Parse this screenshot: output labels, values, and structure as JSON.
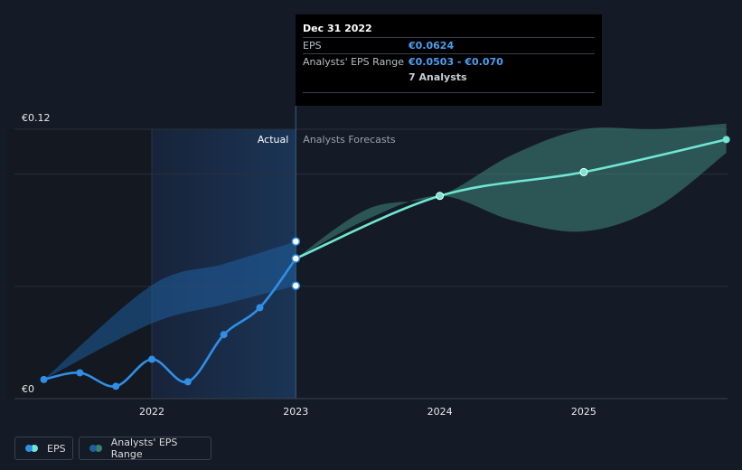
{
  "chart_data": {
    "type": "line",
    "currency_symbol": "€",
    "y_ticks": [
      {
        "value": 0.12,
        "label": "€0.12"
      },
      {
        "value": 0,
        "label": "€0"
      }
    ],
    "ylim": [
      0,
      0.12
    ],
    "x_ticks": [
      {
        "value": 2022,
        "label": "2022"
      },
      {
        "value": 2023,
        "label": "2023"
      },
      {
        "value": 2024,
        "label": "2024"
      },
      {
        "value": 2025,
        "label": "2025"
      }
    ],
    "xlim": [
      2021.0,
      2025.99
    ],
    "divider_x": 2023,
    "region_labels": {
      "actual": "Actual",
      "forecast": "Analysts Forecasts"
    },
    "series": [
      {
        "name": "EPS",
        "kind": "actual",
        "color": "#2f8fe6",
        "points": [
          {
            "x": 2021.25,
            "y": 0.0085
          },
          {
            "x": 2021.5,
            "y": 0.0115
          },
          {
            "x": 2021.75,
            "y": 0.0055
          },
          {
            "x": 2022.0,
            "y": 0.0175
          },
          {
            "x": 2022.25,
            "y": 0.0075
          },
          {
            "x": 2022.5,
            "y": 0.0285
          },
          {
            "x": 2022.75,
            "y": 0.0405
          },
          {
            "x": 2023.0,
            "y": 0.0624
          }
        ]
      },
      {
        "name": "EPS",
        "kind": "forecast",
        "color": "#6ee8d2",
        "points": [
          {
            "x": 2023.0,
            "y": 0.0624
          },
          {
            "x": 2024.0,
            "y": 0.0903
          },
          {
            "x": 2025.0,
            "y": 0.1009
          },
          {
            "x": 2025.99,
            "y": 0.1154
          }
        ]
      }
    ],
    "range_actual": {
      "color": "#1f5f9e",
      "points": [
        {
          "x": 2021.25,
          "lo": 0.0085,
          "hi": 0.0085
        },
        {
          "x": 2022.0,
          "lo": 0.0335,
          "hi": 0.0505
        },
        {
          "x": 2022.5,
          "lo": 0.042,
          "hi": 0.06
        },
        {
          "x": 2023.0,
          "lo": 0.0503,
          "hi": 0.07
        }
      ]
    },
    "range_forecast": {
      "color": "#3c7f75",
      "points": [
        {
          "x": 2023.0,
          "lo": 0.0624,
          "hi": 0.0624
        },
        {
          "x": 2023.5,
          "lo": 0.08,
          "hi": 0.0845
        },
        {
          "x": 2024.0,
          "lo": 0.0903,
          "hi": 0.0903
        },
        {
          "x": 2024.5,
          "lo": 0.0795,
          "hi": 0.1085
        },
        {
          "x": 2025.0,
          "lo": 0.0745,
          "hi": 0.12
        },
        {
          "x": 2025.5,
          "lo": 0.085,
          "hi": 0.12
        },
        {
          "x": 2025.99,
          "lo": 0.1095,
          "hi": 0.1225
        }
      ]
    },
    "markers": [
      {
        "x": 2023.0,
        "y": 0.07,
        "color": "#2f8fe6"
      },
      {
        "x": 2023.0,
        "y": 0.0503,
        "color": "#2f8fe6"
      }
    ]
  },
  "tooltip": {
    "date": "Dec 31 2022",
    "rows": [
      {
        "label": "EPS",
        "value": "€0.0624"
      },
      {
        "label": "Analysts' EPS Range",
        "value": "€0.0503 - €0.070"
      }
    ],
    "analysts": "7 Analysts"
  },
  "legend": {
    "eps_label": "EPS",
    "range_label": "Analysts' EPS Range",
    "eps_colors": [
      "#2f8fe6",
      "#6ee8d2"
    ],
    "range_colors": [
      "#1f5f9e",
      "#3c7f75"
    ]
  }
}
